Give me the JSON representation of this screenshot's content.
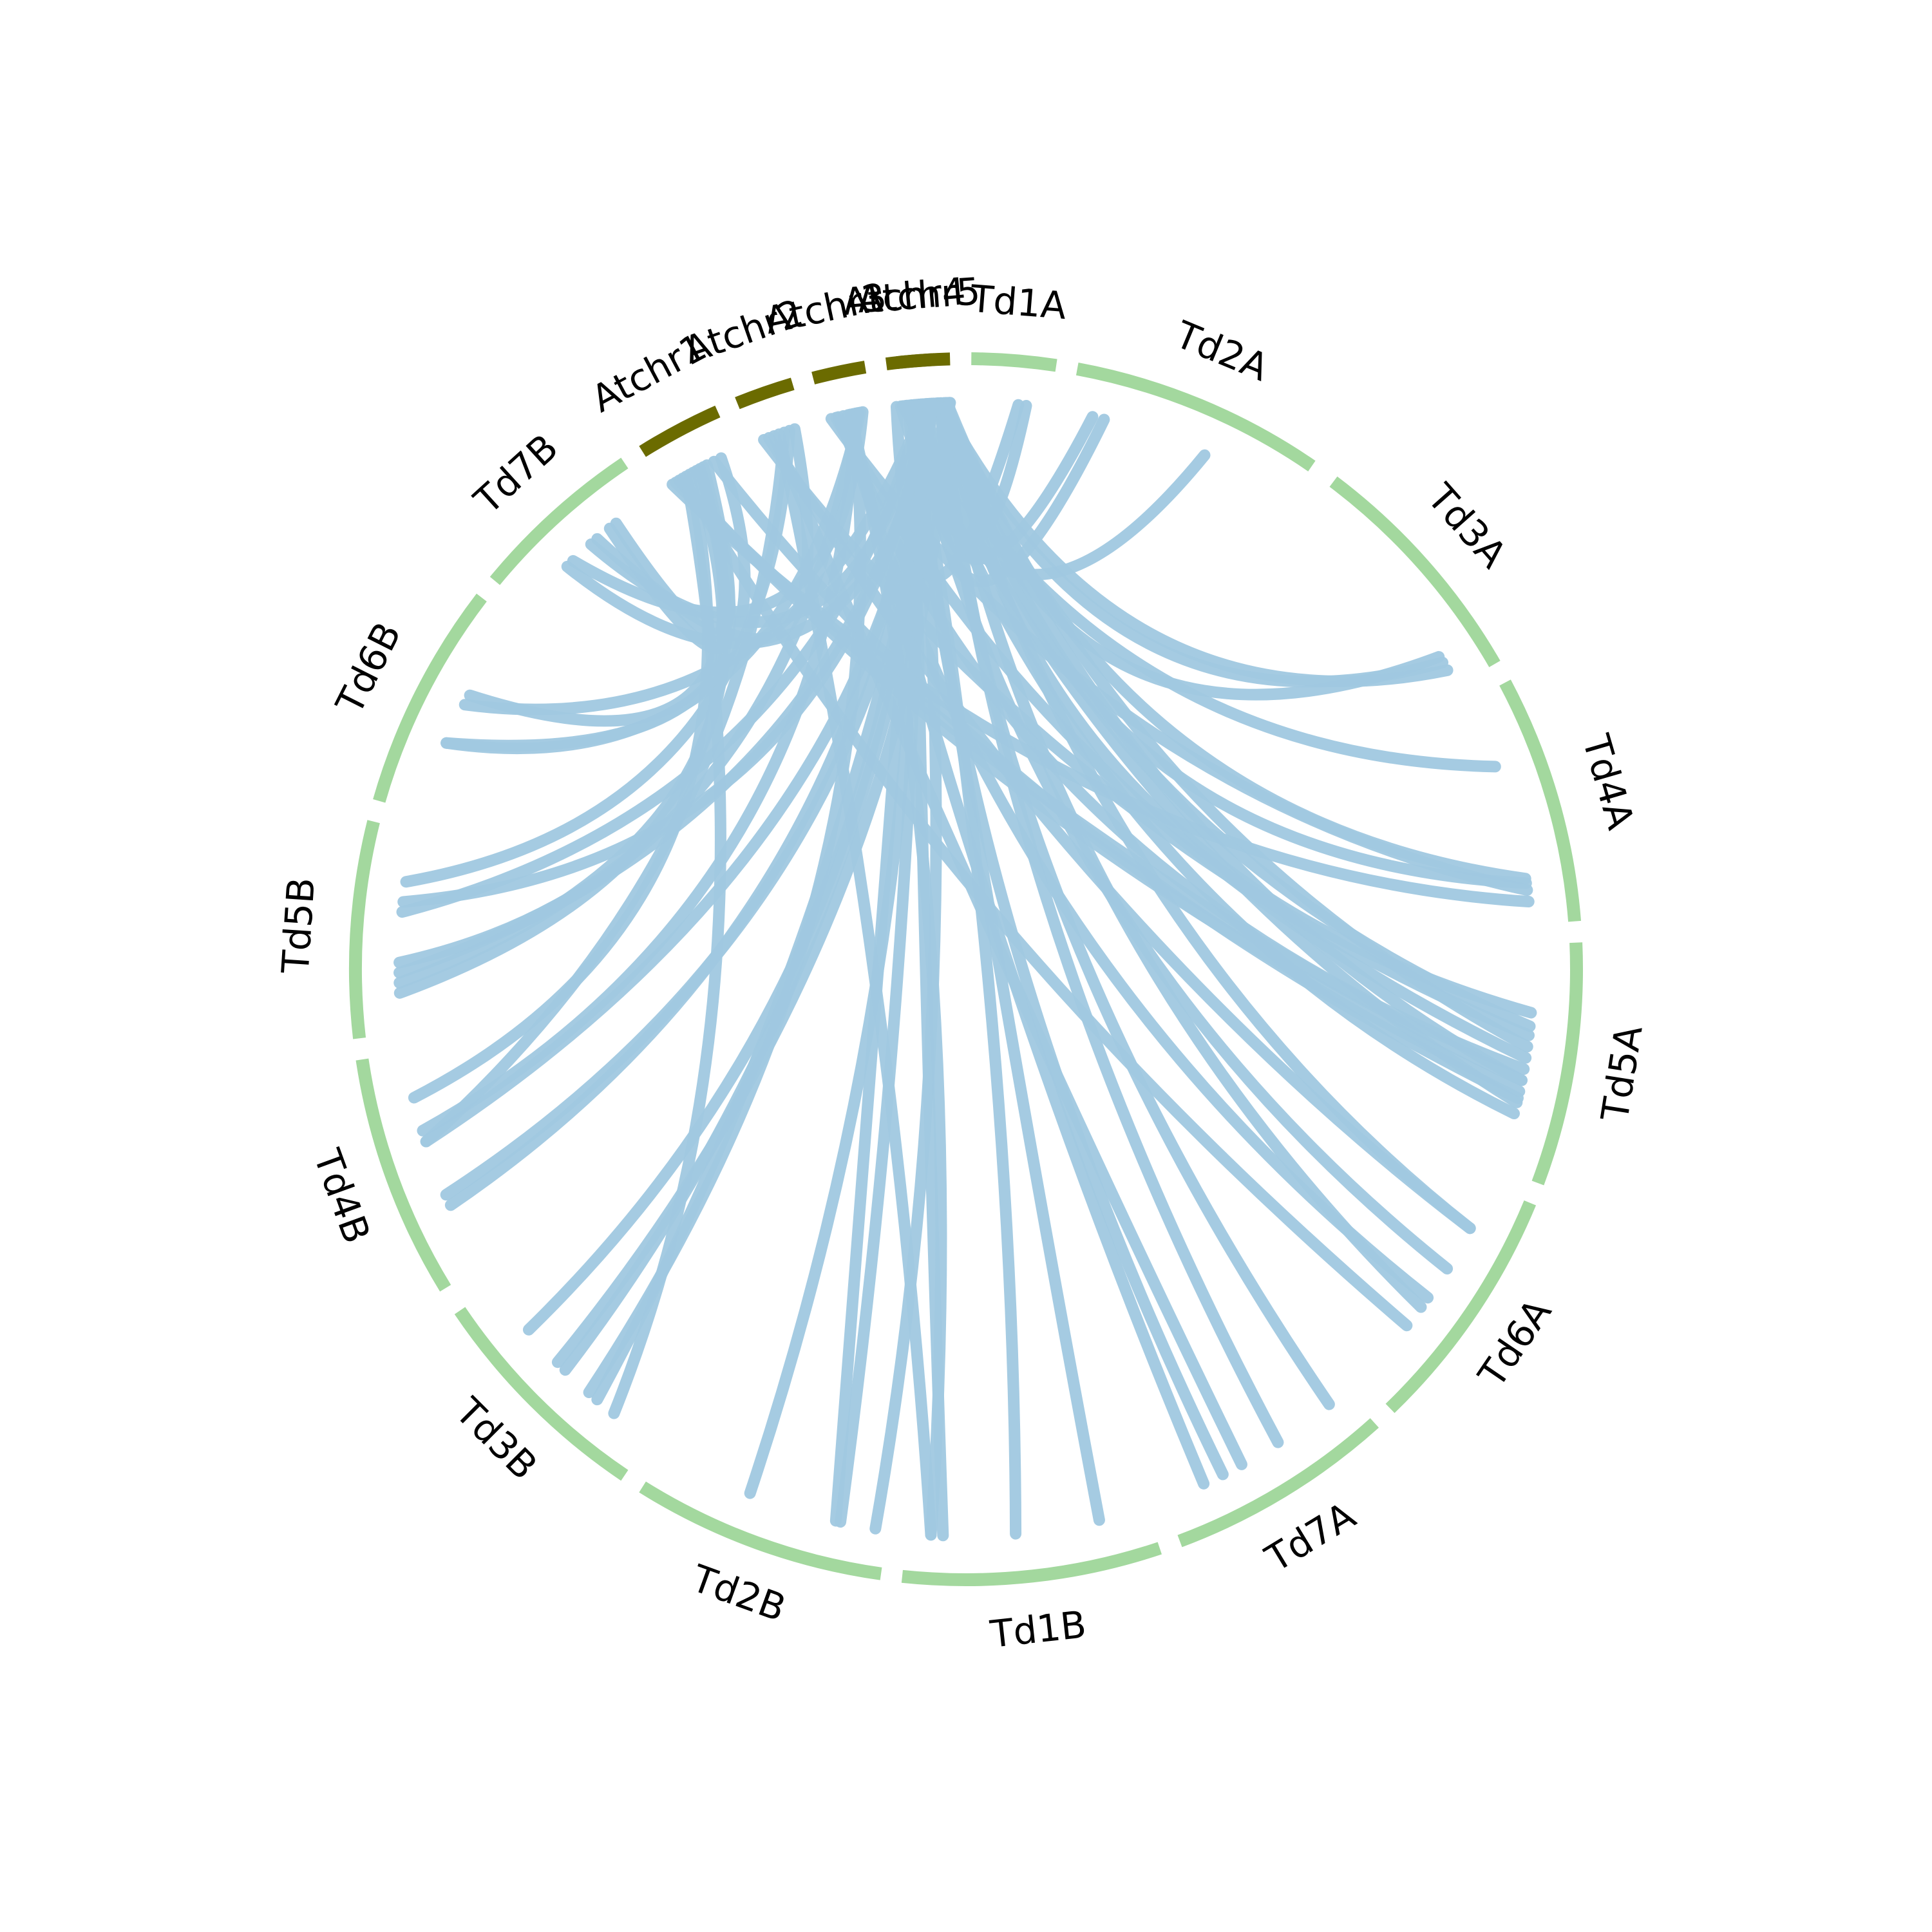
{
  "chart_data": {
    "type": "chord",
    "title": "",
    "colors": {
      "arabidopsis_segment": "#6b6b00",
      "wheat_segment": "#a3d89e",
      "link": "#a0c8e0"
    },
    "chromosomes": [
      {
        "name": "Atchr5",
        "group": "arabidopsis"
      },
      {
        "name": "Td1A",
        "group": "wheat"
      },
      {
        "name": "Td2A",
        "group": "wheat"
      },
      {
        "name": "Td3A",
        "group": "wheat"
      },
      {
        "name": "Td4A",
        "group": "wheat"
      },
      {
        "name": "Td5A",
        "group": "wheat"
      },
      {
        "name": "Td6A",
        "group": "wheat"
      },
      {
        "name": "Td7A",
        "group": "wheat"
      },
      {
        "name": "Td1B",
        "group": "wheat"
      },
      {
        "name": "Td2B",
        "group": "wheat"
      },
      {
        "name": "Td3B",
        "group": "wheat"
      },
      {
        "name": "Td4B",
        "group": "wheat"
      },
      {
        "name": "Td5B",
        "group": "wheat"
      },
      {
        "name": "Td6B",
        "group": "wheat"
      },
      {
        "name": "Td7B",
        "group": "wheat"
      },
      {
        "name": "Atchr1",
        "group": "arabidopsis"
      },
      {
        "name": "Atchr2",
        "group": "arabidopsis"
      },
      {
        "name": "Atchr3",
        "group": "arabidopsis"
      },
      {
        "name": "Atchr4",
        "group": "arabidopsis"
      }
    ],
    "links": [
      {
        "source": "Atchr5",
        "source_pos": 0.3,
        "target": "Td1A",
        "target_pos": 0.7
      },
      {
        "source": "Atchr5",
        "source_pos": 0.5,
        "target": "Td2A",
        "target_pos": 0.1
      },
      {
        "source": "Atchr5",
        "source_pos": 0.55,
        "target": "Td2A",
        "target_pos": 0.15
      },
      {
        "source": "Atchr5",
        "source_pos": 0.75,
        "target": "Td3A",
        "target_pos": 0.85
      },
      {
        "source": "Atchr5",
        "source_pos": 0.78,
        "target": "Td3A",
        "target_pos": 0.88
      },
      {
        "source": "Atchr5",
        "source_pos": 0.8,
        "target": "Td3A",
        "target_pos": 0.92
      },
      {
        "source": "Atchr5",
        "source_pos": 0.9,
        "target": "Td4A",
        "target_pos": 0.8
      },
      {
        "source": "Atchr5",
        "source_pos": 0.93,
        "target": "Td4A",
        "target_pos": 0.82
      },
      {
        "source": "Atchr5",
        "source_pos": 0.85,
        "target": "Td5A",
        "target_pos": 0.3
      },
      {
        "source": "Atchr5",
        "source_pos": 0.88,
        "target": "Td5A",
        "target_pos": 0.36
      },
      {
        "source": "Atchr5",
        "source_pos": 0.92,
        "target": "Td5A",
        "target_pos": 0.45
      },
      {
        "source": "Atchr5",
        "source_pos": 0.7,
        "target": "Td5A",
        "target_pos": 0.6
      },
      {
        "source": "Atchr5",
        "source_pos": 0.72,
        "target": "Td6A",
        "target_pos": 0.2
      },
      {
        "source": "Atchr5",
        "source_pos": 0.74,
        "target": "Td6A",
        "target_pos": 0.6
      },
      {
        "source": "Atchr5",
        "source_pos": 0.76,
        "target": "Td7A",
        "target_pos": 0.1
      },
      {
        "source": "Atchr5",
        "source_pos": 0.8,
        "target": "Td7A",
        "target_pos": 0.4
      },
      {
        "source": "Atchr5",
        "source_pos": 0.1,
        "target": "Td1B",
        "target_pos": 0.2
      },
      {
        "source": "Atchr5",
        "source_pos": 0.2,
        "target": "Td1B",
        "target_pos": 0.55
      },
      {
        "source": "Atchr5",
        "source_pos": 0.25,
        "target": "Td2B",
        "target_pos": 0.05
      },
      {
        "source": "Atchr5",
        "source_pos": 0.35,
        "target": "Td2B",
        "target_pos": 0.2
      },
      {
        "source": "Atchr5",
        "source_pos": 0.4,
        "target": "Td2B",
        "target_pos": 0.22
      },
      {
        "source": "Atchr5",
        "source_pos": 0.95,
        "target": "Td3B",
        "target_pos": 0.3
      },
      {
        "source": "Atchr5",
        "source_pos": 0.96,
        "target": "Td3B",
        "target_pos": 0.5
      },
      {
        "source": "Atchr5",
        "source_pos": 0.97,
        "target": "Td3B",
        "target_pos": 0.55
      },
      {
        "source": "Atchr5",
        "source_pos": 0.6,
        "target": "Td4B",
        "target_pos": 0.6
      },
      {
        "source": "Atchr5",
        "source_pos": 0.65,
        "target": "Td5B",
        "target_pos": 0.3
      },
      {
        "source": "Atchr5",
        "source_pos": 0.98,
        "target": "Td7B",
        "target_pos": 0.35
      },
      {
        "source": "Atchr4",
        "source_pos": 0.1,
        "target": "Td1A",
        "target_pos": 0.6
      },
      {
        "source": "Atchr4",
        "source_pos": 0.2,
        "target": "Td2A",
        "target_pos": 0.6
      },
      {
        "source": "Atchr4",
        "source_pos": 0.25,
        "target": "Td4A",
        "target_pos": 0.3
      },
      {
        "source": "Atchr4",
        "source_pos": 0.3,
        "target": "Td5A",
        "target_pos": 0.7
      },
      {
        "source": "Atchr4",
        "source_pos": 0.35,
        "target": "Td5A",
        "target_pos": 0.75
      },
      {
        "source": "Atchr4",
        "source_pos": 0.4,
        "target": "Td6A",
        "target_pos": 0.4
      },
      {
        "source": "Atchr4",
        "source_pos": 0.45,
        "target": "Td7A",
        "target_pos": 0.7
      },
      {
        "source": "Atchr4",
        "source_pos": 0.5,
        "target": "Td1B",
        "target_pos": 0.85
      },
      {
        "source": "Atchr4",
        "source_pos": 0.55,
        "target": "Td2B",
        "target_pos": 0.6
      },
      {
        "source": "Atchr4",
        "source_pos": 0.6,
        "target": "Td3B",
        "target_pos": 0.75
      },
      {
        "source": "Atchr4",
        "source_pos": 0.65,
        "target": "Td4B",
        "target_pos": 0.3
      },
      {
        "source": "Atchr4",
        "source_pos": 0.7,
        "target": "Td5B",
        "target_pos": 0.6
      },
      {
        "source": "Atchr4",
        "source_pos": 0.75,
        "target": "Td6B",
        "target_pos": 0.55
      },
      {
        "source": "Atchr4",
        "source_pos": 0.8,
        "target": "Td7B",
        "target_pos": 0.55
      },
      {
        "source": "Atchr4",
        "source_pos": 0.85,
        "target": "Td5B",
        "target_pos": 0.65
      },
      {
        "source": "Atchr4",
        "source_pos": 0.9,
        "target": "Td4B",
        "target_pos": 0.35
      },
      {
        "source": "Atchr3",
        "source_pos": 0.15,
        "target": "Td4A",
        "target_pos": 0.85
      },
      {
        "source": "Atchr3",
        "source_pos": 0.25,
        "target": "Td5A",
        "target_pos": 0.5
      },
      {
        "source": "Atchr3",
        "source_pos": 0.3,
        "target": "Td5A",
        "target_pos": 0.55
      },
      {
        "source": "Atchr3",
        "source_pos": 0.4,
        "target": "Td6A",
        "target_pos": 0.55
      },
      {
        "source": "Atchr3",
        "source_pos": 0.5,
        "target": "Td7A",
        "target_pos": 0.8
      },
      {
        "source": "Atchr3",
        "source_pos": 0.55,
        "target": "Td1B",
        "target_pos": 0.9
      },
      {
        "source": "Atchr3",
        "source_pos": 0.6,
        "target": "Td3B",
        "target_pos": 0.35
      },
      {
        "source": "Atchr3",
        "source_pos": 0.65,
        "target": "Td4B",
        "target_pos": 0.65
      },
      {
        "source": "Atchr3",
        "source_pos": 0.7,
        "target": "Td5B",
        "target_pos": 0.35
      },
      {
        "source": "Atchr3",
        "source_pos": 0.75,
        "target": "Td6B",
        "target_pos": 0.35
      },
      {
        "source": "Atchr3",
        "source_pos": 0.8,
        "target": "Td7B",
        "target_pos": 0.4
      },
      {
        "source": "Atchr2",
        "source_pos": 0.2,
        "target": "Td5A",
        "target_pos": 0.4
      },
      {
        "source": "Atchr2",
        "source_pos": 0.3,
        "target": "Td6A",
        "target_pos": 0.2
      },
      {
        "source": "Atchr2",
        "source_pos": 0.4,
        "target": "Td7A",
        "target_pos": 0.6
      },
      {
        "source": "Atchr2",
        "source_pos": 0.5,
        "target": "Td1B",
        "target_pos": 0.9
      },
      {
        "source": "Atchr2",
        "source_pos": 0.6,
        "target": "Td4B",
        "target_pos": 0.6
      },
      {
        "source": "Atchr2",
        "source_pos": 0.7,
        "target": "Td5B",
        "target_pos": 0.75
      },
      {
        "source": "Atchr2",
        "source_pos": 0.8,
        "target": "Td7B",
        "target_pos": 0.6
      },
      {
        "source": "Atchr1",
        "source_pos": 0.1,
        "target": "Td4A",
        "target_pos": 0.9
      },
      {
        "source": "Atchr1",
        "source_pos": 0.15,
        "target": "Td5A",
        "target_pos": 0.6
      },
      {
        "source": "Atchr1",
        "source_pos": 0.2,
        "target": "Td5A",
        "target_pos": 0.65
      },
      {
        "source": "Atchr1",
        "source_pos": 0.25,
        "target": "Td6A",
        "target_pos": 0.7
      },
      {
        "source": "Atchr1",
        "source_pos": 0.3,
        "target": "Td3B",
        "target_pos": 0.2
      },
      {
        "source": "Atchr1",
        "source_pos": 0.35,
        "target": "Td4B",
        "target_pos": 0.8
      },
      {
        "source": "Atchr1",
        "source_pos": 0.4,
        "target": "Td5B",
        "target_pos": 0.2
      },
      {
        "source": "Atchr1",
        "source_pos": 0.45,
        "target": "Td5B",
        "target_pos": 0.25
      },
      {
        "source": "Atchr1",
        "source_pos": 0.5,
        "target": "Td6B",
        "target_pos": 0.6
      },
      {
        "source": "Atchr1",
        "source_pos": 0.55,
        "target": "Td7B",
        "target_pos": 0.7
      },
      {
        "source": "Atchr1",
        "source_pos": 0.6,
        "target": "Td7B",
        "target_pos": 0.75
      },
      {
        "source": "Atchr1",
        "source_pos": 0.7,
        "target": "Td5A",
        "target_pos": 0.68
      },
      {
        "source": "Atchr1",
        "source_pos": 0.8,
        "target": "Td6B",
        "target_pos": 0.35
      }
    ]
  }
}
